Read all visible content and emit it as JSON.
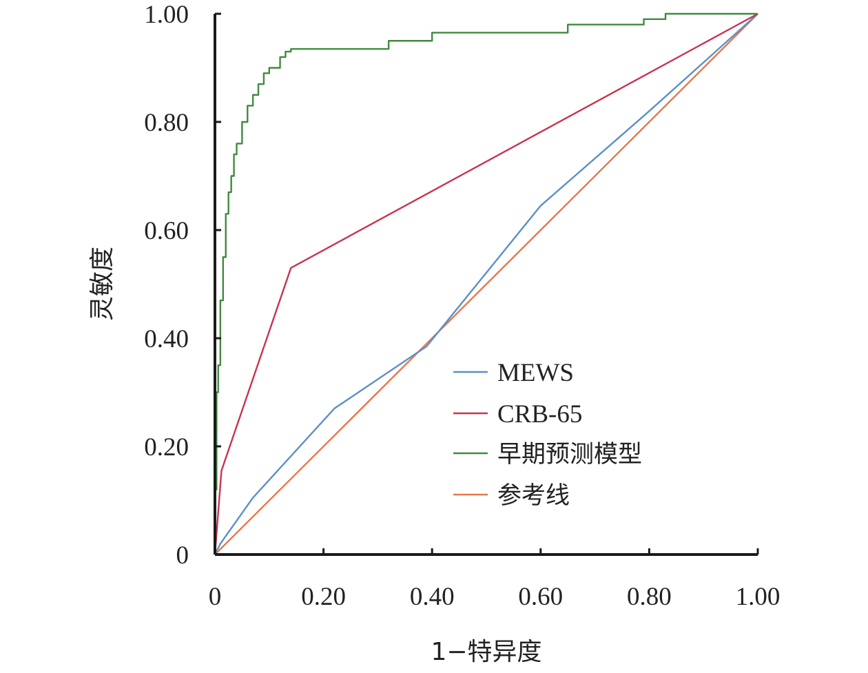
{
  "chart_data": {
    "type": "line",
    "title": "",
    "xlabel": "1−特异度",
    "ylabel": "灵敏度",
    "xlim": [
      0,
      1
    ],
    "ylim": [
      0,
      1
    ],
    "x_ticks": [
      0,
      0.2,
      0.4,
      0.6,
      0.8,
      1.0
    ],
    "x_tick_labels": [
      "0",
      "0.20",
      "0.40",
      "0.60",
      "0.80",
      "1.00"
    ],
    "y_ticks": [
      0,
      0.2,
      0.4,
      0.6,
      0.8,
      1.0
    ],
    "y_tick_labels": [
      "0",
      "0.20",
      "0.40",
      "0.60",
      "0.80",
      "1.00"
    ],
    "grid": false,
    "legend_position": "bottom-right",
    "series": [
      {
        "name": "MEWS",
        "color": "#5b8fc9",
        "points": [
          [
            0,
            0
          ],
          [
            0.01,
            0.02
          ],
          [
            0.07,
            0.105
          ],
          [
            0.22,
            0.27
          ],
          [
            0.39,
            0.385
          ],
          [
            0.6,
            0.645
          ],
          [
            0.8,
            0.82
          ],
          [
            1.0,
            1.0
          ]
        ]
      },
      {
        "name": "CRB-65",
        "color": "#c8334f",
        "points": [
          [
            0,
            0
          ],
          [
            0.012,
            0.155
          ],
          [
            0.14,
            0.53
          ],
          [
            1.0,
            1.0
          ]
        ]
      },
      {
        "name": "早期预测模型",
        "color": "#3f8a3d",
        "step": true,
        "points": [
          [
            0,
            0
          ],
          [
            0.001,
            0.12
          ],
          [
            0.003,
            0.3
          ],
          [
            0.006,
            0.35
          ],
          [
            0.01,
            0.47
          ],
          [
            0.015,
            0.55
          ],
          [
            0.02,
            0.63
          ],
          [
            0.025,
            0.67
          ],
          [
            0.03,
            0.7
          ],
          [
            0.035,
            0.74
          ],
          [
            0.04,
            0.76
          ],
          [
            0.05,
            0.8
          ],
          [
            0.06,
            0.83
          ],
          [
            0.07,
            0.85
          ],
          [
            0.08,
            0.87
          ],
          [
            0.09,
            0.89
          ],
          [
            0.1,
            0.9
          ],
          [
            0.12,
            0.92
          ],
          [
            0.13,
            0.93
          ],
          [
            0.14,
            0.935
          ],
          [
            0.32,
            0.95
          ],
          [
            0.4,
            0.965
          ],
          [
            0.65,
            0.98
          ],
          [
            0.79,
            0.99
          ],
          [
            0.83,
            1.0
          ],
          [
            1.0,
            1.0
          ]
        ]
      },
      {
        "name": "参考线",
        "color": "#e8774a",
        "points": [
          [
            0,
            0
          ],
          [
            1.0,
            1.0
          ]
        ]
      }
    ]
  }
}
